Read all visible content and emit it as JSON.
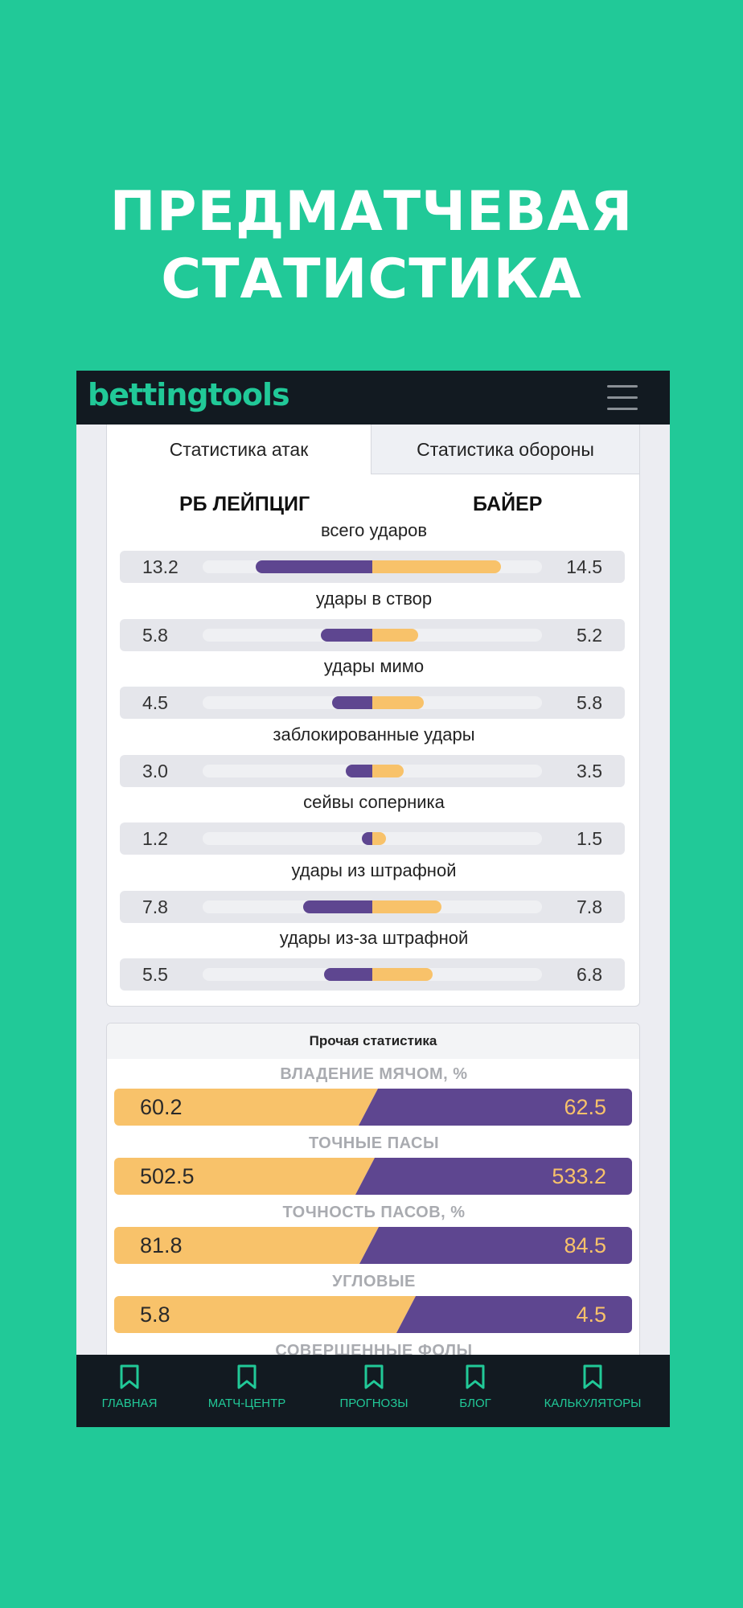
{
  "promo": {
    "title_line1": "ПРЕДМАТЧЕВАЯ",
    "title_line2": "СТАТИСТИКА"
  },
  "header": {
    "logo": "bettingtools",
    "menu_icon": "hamburger-menu-icon"
  },
  "tabs": [
    {
      "label": "Статистика атак",
      "active": true
    },
    {
      "label": "Статистика обороны",
      "active": false
    }
  ],
  "teams": {
    "home": "РБ ЛЕЙПЦИГ",
    "away": "БАЙЕР"
  },
  "attack_stats": [
    {
      "label": "всего ударов",
      "home": "13.2",
      "away": "14.5"
    },
    {
      "label": "удары в створ",
      "home": "5.8",
      "away": "5.2"
    },
    {
      "label": "удары мимо",
      "home": "4.5",
      "away": "5.8"
    },
    {
      "label": "заблокированные удары",
      "home": "3.0",
      "away": "3.5"
    },
    {
      "label": "сейвы соперника",
      "home": "1.2",
      "away": "1.5"
    },
    {
      "label": "удары из штрафной",
      "home": "7.8",
      "away": "7.8"
    },
    {
      "label": "удары из-за штрафной",
      "home": "5.5",
      "away": "6.8"
    }
  ],
  "other": {
    "title": "Прочая статистика",
    "items": [
      {
        "label": "ВЛАДЕНИЕ МЯЧОМ, %",
        "home": "60.2",
        "away": "62.5"
      },
      {
        "label": "ТОЧНЫЕ ПАСЫ",
        "home": "502.5",
        "away": "533.2"
      },
      {
        "label": "ТОЧНОСТЬ ПАСОВ, %",
        "home": "81.8",
        "away": "84.5"
      },
      {
        "label": "УГЛОВЫЕ",
        "home": "5.8",
        "away": "4.5"
      },
      {
        "label": "СОВЕРШЕННЫЕ ФОЛЫ",
        "home": "",
        "away": ""
      }
    ]
  },
  "colors": {
    "background": "#21c998",
    "home_bar": "#5e4690",
    "away_bar": "#f8c26a",
    "dark_bar": "#121a21"
  },
  "nav": [
    {
      "label": "ГЛАВНАЯ",
      "icon": "bookmark-icon"
    },
    {
      "label": "МАТЧ-ЦЕНТР",
      "icon": "bookmark-icon"
    },
    {
      "label": "ПРОГНОЗЫ",
      "icon": "bookmark-icon"
    },
    {
      "label": "БЛОГ",
      "icon": "bookmark-icon"
    },
    {
      "label": "КАЛЬКУЛЯТОРЫ",
      "icon": "bookmark-icon"
    }
  ]
}
